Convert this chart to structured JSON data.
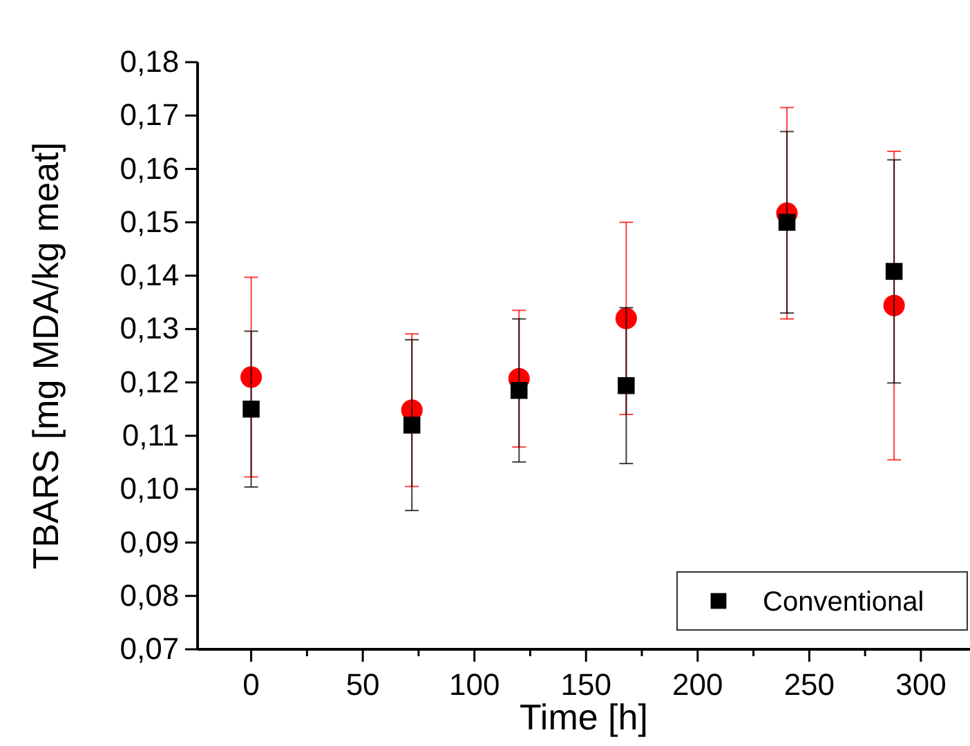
{
  "chart_data": {
    "type": "scatter",
    "xlabel": "Time [h]",
    "ylabel": "TBARS [mg MDA/kg meat]",
    "x": [
      0,
      72,
      120,
      168,
      240,
      288
    ],
    "series": [
      {
        "color": "#ff0000",
        "marker": "circle",
        "values": [
          0.121,
          0.1148,
          0.1207,
          0.132,
          0.1517,
          0.1344
        ],
        "errors": [
          0.0187,
          0.0143,
          0.0128,
          0.018,
          0.0198,
          0.0289
        ]
      },
      {
        "name": "Conventional",
        "color": "#000000",
        "marker": "square",
        "values": [
          0.115,
          0.112,
          0.1185,
          0.1194,
          0.15,
          0.1408
        ],
        "errors": [
          0.0146,
          0.016,
          0.0134,
          0.0146,
          0.017,
          0.0209
        ]
      }
    ],
    "xlim": [
      -24,
      322
    ],
    "xticks": [
      0,
      {
        "value": 25,
        "label": null
      },
      50,
      {
        "value": 75,
        "label": null
      },
      100,
      {
        "value": 125,
        "label": null
      },
      150,
      {
        "value": 175,
        "label": null
      },
      200,
      {
        "value": 225,
        "label": null
      },
      250,
      {
        "value": 275,
        "label": null
      },
      300
    ],
    "ylim": [
      0.07,
      0.18
    ],
    "yticks": [
      {
        "value": 0.07,
        "label": "0,07"
      },
      {
        "value": 0.08,
        "label": "0,08"
      },
      {
        "value": 0.09,
        "label": "0,09"
      },
      {
        "value": 0.1,
        "label": "0,10"
      },
      {
        "value": 0.11,
        "label": "0,11"
      },
      {
        "value": 0.12,
        "label": "0,12"
      },
      {
        "value": 0.13,
        "label": "0,13"
      },
      {
        "value": 0.14,
        "label": "0,14"
      },
      {
        "value": 0.15,
        "label": "0,15"
      },
      {
        "value": 0.16,
        "label": "0,16"
      },
      {
        "value": 0.17,
        "label": "0,17"
      },
      {
        "value": 0.18,
        "label": "0,18"
      }
    ],
    "legend": "bottom right"
  }
}
